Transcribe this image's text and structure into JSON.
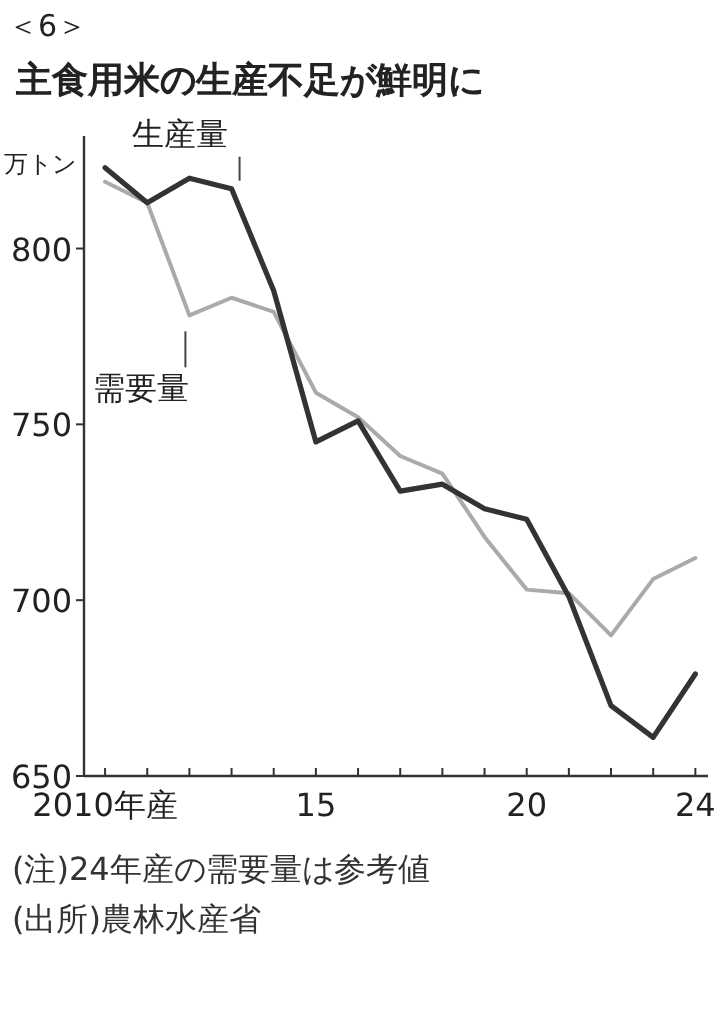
{
  "chart_data": {
    "type": "line",
    "title": "主食用米の生産不足が鮮明に",
    "ylabel": "万トン",
    "annotations": [
      "＜6＞",
      "(注)24年産の需要量は参考値",
      "(出所)農林水産省"
    ],
    "x": [
      2010,
      2011,
      2012,
      2013,
      2014,
      2015,
      2016,
      2017,
      2018,
      2019,
      2020,
      2021,
      2022,
      2023,
      2024
    ],
    "series": [
      {
        "name": "生産量",
        "color": "#333333",
        "values": [
          823,
          813,
          820,
          817,
          788,
          745,
          751,
          731,
          733,
          726,
          723,
          701,
          670,
          661,
          679
        ]
      },
      {
        "name": "需要量",
        "color": "#aaaaaa",
        "values": [
          819,
          813,
          781,
          786,
          782,
          759,
          752,
          741,
          736,
          718,
          703,
          702,
          690,
          706,
          712
        ]
      }
    ],
    "xlim": [
      2009.5,
      2024.3
    ],
    "xticks": [
      {
        "value": 2010,
        "label": "2010年産"
      },
      {
        "value": 2011,
        "label": null
      },
      {
        "value": 2012,
        "label": null
      },
      {
        "value": 2013,
        "label": null
      },
      {
        "value": 2014,
        "label": null
      },
      {
        "value": 2015,
        "label": "15"
      },
      {
        "value": 2016,
        "label": null
      },
      {
        "value": 2017,
        "label": null
      },
      {
        "value": 2018,
        "label": null
      },
      {
        "value": 2019,
        "label": null
      },
      {
        "value": 2020,
        "label": "20"
      },
      {
        "value": 2021,
        "label": null
      },
      {
        "value": 2022,
        "label": null
      },
      {
        "value": 2023,
        "label": null
      },
      {
        "value": 2024,
        "label": "24"
      }
    ],
    "ylim": [
      650,
      832
    ],
    "yticks": [
      650,
      700,
      750,
      800
    ],
    "grid": false,
    "legend": false,
    "marker": "none",
    "line_style": "solid"
  }
}
